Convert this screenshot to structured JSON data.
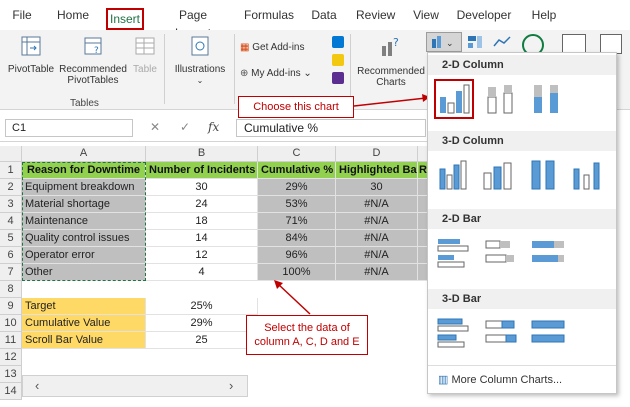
{
  "menu": {
    "tabs": [
      {
        "label": "File"
      },
      {
        "label": "Home"
      },
      {
        "label": "Insert",
        "active": true
      },
      {
        "label": "Page Layout"
      },
      {
        "label": "Formulas"
      },
      {
        "label": "Data"
      },
      {
        "label": "Review"
      },
      {
        "label": "View"
      },
      {
        "label": "Developer"
      },
      {
        "label": "Help"
      }
    ]
  },
  "ribbon": {
    "pivottable": "PivotTable",
    "recommended_pivot_line1": "Recommended",
    "recommended_pivot_line2": "PivotTables",
    "table": "Table",
    "tables_group": "Tables",
    "illustrations": "Illustrations",
    "get_addins": "Get Add-ins",
    "my_addins": "My Add-ins",
    "recommended_charts_line1": "Recommended",
    "recommended_charts_line2": "Charts"
  },
  "formula_bar": {
    "name_box": "C1",
    "cancel_glyph": "✕",
    "enter_glyph": "✓",
    "fx": "fx",
    "content": "Cumulative %"
  },
  "grid": {
    "columns": [
      "A",
      "B",
      "C",
      "D"
    ],
    "rows": [
      "1",
      "2",
      "3",
      "4",
      "5",
      "6",
      "7",
      "8",
      "9",
      "10",
      "11",
      "12",
      "13",
      "14"
    ],
    "header": [
      "Reason for Downtime",
      "Number of Incidents",
      "Cumulative %",
      "Highlighted Bar",
      "R"
    ],
    "data": [
      [
        "Equipment breakdown",
        "30",
        "29%",
        "30"
      ],
      [
        "Material shortage",
        "24",
        "53%",
        "#N/A"
      ],
      [
        "Maintenance",
        "18",
        "71%",
        "#N/A"
      ],
      [
        "Quality control issues",
        "14",
        "84%",
        "#N/A"
      ],
      [
        "Operator error",
        "12",
        "96%",
        "#N/A"
      ],
      [
        "Other",
        "4",
        "100%",
        "#N/A"
      ]
    ],
    "params": [
      [
        "Target",
        "25%"
      ],
      [
        "Cumulative Value",
        "29%"
      ],
      [
        "Scroll Bar Value",
        "25"
      ]
    ]
  },
  "dropdown": {
    "sections": [
      "2-D Column",
      "3-D Column",
      "2-D Bar",
      "3-D Bar"
    ],
    "more": "More Column Charts..."
  },
  "callouts": {
    "choose": "Choose this chart",
    "select_line1": "Select the data of",
    "select_line2": "column A, C, D and E"
  },
  "colors": {
    "accent_red": "#c00000",
    "header_green": "#92d050",
    "selection_gray": "#bfbfbf",
    "param_yellow": "#ffd966",
    "chart_blue": "#5b9bd5"
  }
}
